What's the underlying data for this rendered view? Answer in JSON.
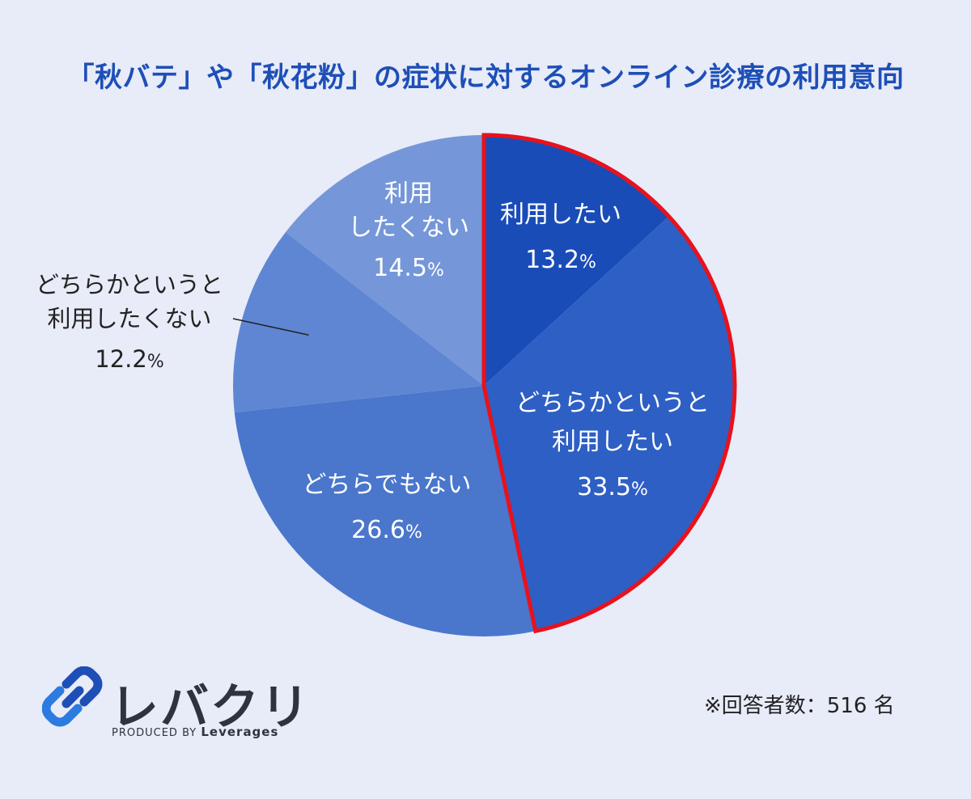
{
  "chart_data": {
    "type": "pie",
    "title": "「秋バテ」や「秋花粉」の症状に対するオンライン診療の利用意向",
    "slices": [
      {
        "label": [
          "利用したい"
        ],
        "value": 13.2,
        "color": "#1a4cb8",
        "highlight": true
      },
      {
        "label": [
          "どちらかというと",
          "利用したい"
        ],
        "value": 33.5,
        "color": "#2e5fc4",
        "highlight": true
      },
      {
        "label": [
          "どちらでもない"
        ],
        "value": 26.6,
        "color": "#4a76cc"
      },
      {
        "label": [
          "どちらかというと",
          "利用したくない"
        ],
        "value": 12.2,
        "color": "#5f86d2",
        "outside": true
      },
      {
        "label": [
          "利用",
          "したくない"
        ],
        "value": 14.5,
        "color": "#7597d9"
      }
    ],
    "unit": "%",
    "highlight_color": "#e8121c"
  },
  "footnote": "※回答者数：516 名",
  "logo": {
    "name": "レバクリ",
    "produced_by": "PRODUCED BY",
    "brand": "Leverages"
  }
}
